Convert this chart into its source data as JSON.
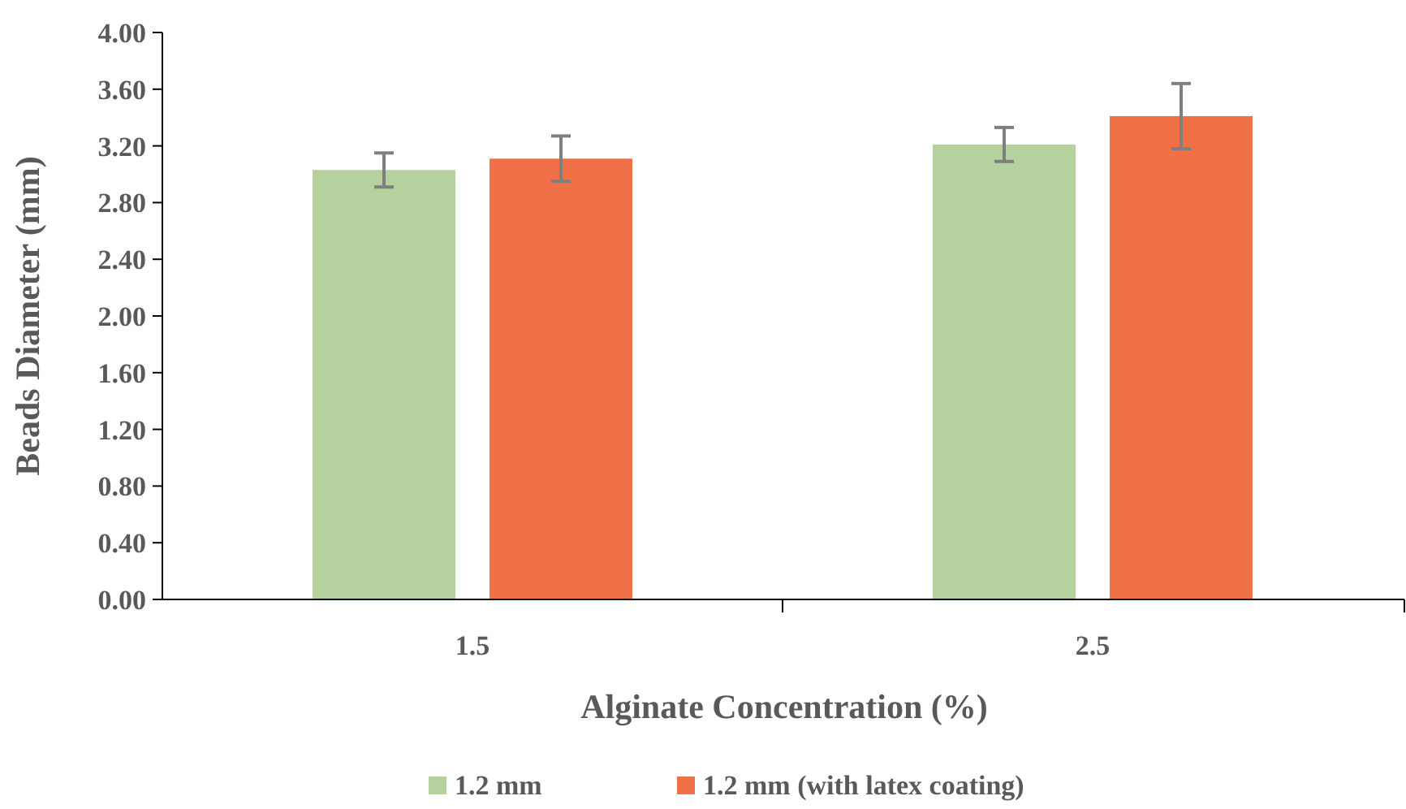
{
  "chart_data": {
    "type": "bar",
    "xlabel": "Alginate Concentration (%)",
    "ylabel": "Beads Diameter (mm)",
    "categories": [
      "1.5",
      "2.5"
    ],
    "series": [
      {
        "name": "1.2 mm",
        "color": "#b4d19e",
        "values": [
          3.03,
          3.21
        ],
        "errors": [
          0.12,
          0.12
        ]
      },
      {
        "name": "1.2 mm (with latex coating)",
        "color": "#f07148",
        "values": [
          3.11,
          3.41
        ],
        "errors": [
          0.16,
          0.23
        ]
      }
    ],
    "ylim": [
      0,
      4
    ],
    "yticks": [
      {
        "value": 0,
        "label": "0.00"
      },
      {
        "value": 0.4,
        "label": "0.40"
      },
      {
        "value": 0.8,
        "label": "0.80"
      },
      {
        "value": 1.2,
        "label": "1.20"
      },
      {
        "value": 1.6,
        "label": "1.60"
      },
      {
        "value": 2,
        "label": "2.00"
      },
      {
        "value": 2.4,
        "label": "2.40"
      },
      {
        "value": 2.8,
        "label": "2.80"
      },
      {
        "value": 3.2,
        "label": "3.20"
      },
      {
        "value": 3.6,
        "label": "3.60"
      },
      {
        "value": 4,
        "label": "4.00"
      }
    ],
    "grid": false,
    "legend": "bottom"
  }
}
